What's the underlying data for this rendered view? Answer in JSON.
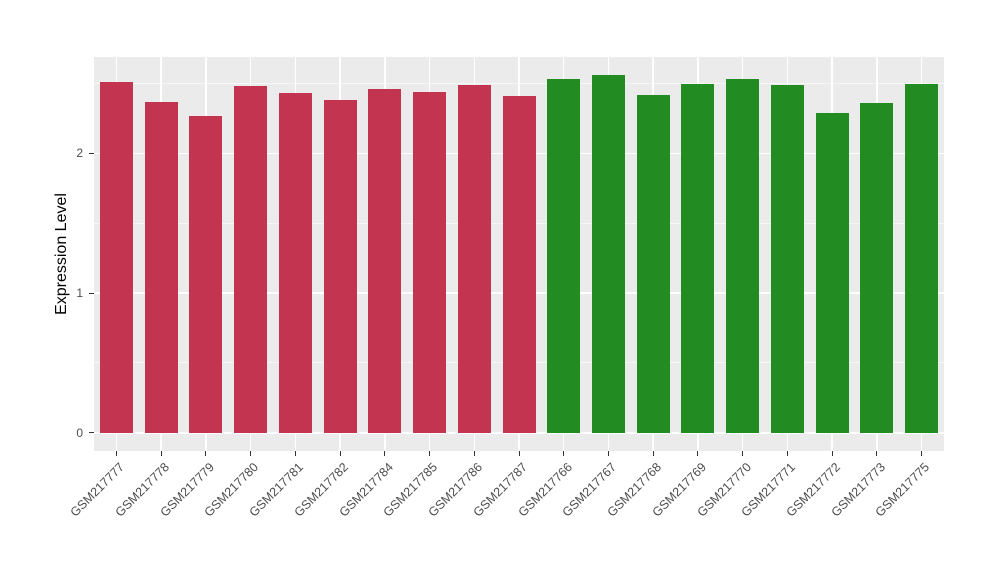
{
  "chart_data": {
    "type": "bar",
    "title": "",
    "xlabel": "",
    "ylabel": "Expression Level",
    "categories": [
      "GSM217777",
      "GSM217778",
      "GSM217779",
      "GSM217780",
      "GSM217781",
      "GSM217782",
      "GSM217784",
      "GSM217785",
      "GSM217786",
      "GSM217787",
      "GSM217766",
      "GSM217767",
      "GSM217768",
      "GSM217769",
      "GSM217770",
      "GSM217771",
      "GSM217772",
      "GSM217773",
      "GSM217775"
    ],
    "values": [
      2.51,
      2.37,
      2.27,
      2.48,
      2.43,
      2.38,
      2.46,
      2.44,
      2.49,
      2.41,
      2.53,
      2.56,
      2.42,
      2.5,
      2.53,
      2.49,
      2.29,
      2.36,
      2.5
    ],
    "groups": [
      "group1",
      "group1",
      "group1",
      "group1",
      "group1",
      "group1",
      "group1",
      "group1",
      "group1",
      "group1",
      "group2",
      "group2",
      "group2",
      "group2",
      "group2",
      "group2",
      "group2",
      "group2",
      "group2"
    ],
    "group_colors": {
      "group1": "#C2344F",
      "group2": "#228B22"
    },
    "yticks": [
      0,
      1,
      2
    ],
    "yticks_minor": [
      0.5,
      1.5,
      2.5
    ],
    "ylim": [
      -0.13,
      2.69
    ],
    "grid": "on",
    "legend": "none",
    "panel_background": "#EBEBEB",
    "grid_color": "#FFFFFF",
    "tick_color": "#333333",
    "tick_label_color": "#4D4D4D",
    "axis_title_color": "#000000"
  }
}
